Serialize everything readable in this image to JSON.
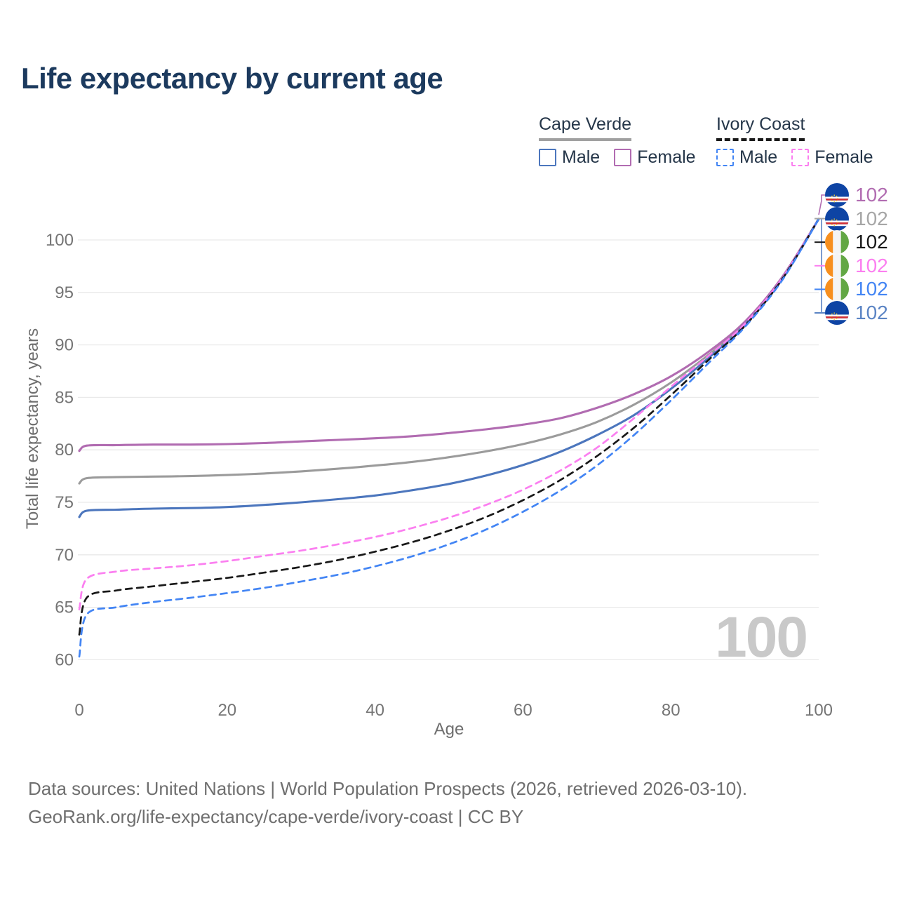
{
  "title": "Life expectancy by current age",
  "legend": {
    "groups": [
      {
        "label": "Cape Verde",
        "line_style": "solid",
        "swatch_color": "#a0a0a0",
        "items": [
          {
            "label": "Male",
            "color": "#4c76bd"
          },
          {
            "label": "Female",
            "color": "#b16cb1"
          }
        ]
      },
      {
        "label": "Ivory Coast",
        "line_style": "dashed",
        "swatch_color": "#1a1a1a",
        "items": [
          {
            "label": "Male",
            "color": "#4385f4"
          },
          {
            "label": "Female",
            "color": "#fb7ff0"
          }
        ]
      }
    ]
  },
  "chart_data": {
    "type": "line",
    "x": [
      0,
      1,
      5,
      10,
      15,
      20,
      25,
      30,
      35,
      40,
      45,
      50,
      55,
      60,
      65,
      70,
      75,
      80,
      85,
      90,
      95,
      100
    ],
    "series": [
      {
        "name": "Cape Verde Female",
        "country": "Cape Verde",
        "sex": "Female",
        "color": "#b16cb1",
        "dashed": false,
        "values": [
          79.9,
          80.4,
          80.45,
          80.5,
          80.5,
          80.55,
          80.65,
          80.8,
          80.95,
          81.1,
          81.3,
          81.6,
          81.95,
          82.4,
          83.0,
          84.0,
          85.3,
          87.0,
          89.3,
          92.2,
          96.4,
          102
        ]
      },
      {
        "name": "Cape Verde Both sexes",
        "country": "Cape Verde",
        "sex": "Both",
        "color": "#9b9b9b",
        "dashed": false,
        "values": [
          76.8,
          77.3,
          77.4,
          77.45,
          77.5,
          77.6,
          77.75,
          77.95,
          78.2,
          78.5,
          78.85,
          79.3,
          79.85,
          80.55,
          81.45,
          82.65,
          84.3,
          86.4,
          89.0,
          92.0,
          96.3,
          102
        ]
      },
      {
        "name": "Cape Verde Male",
        "country": "Cape Verde",
        "sex": "Male",
        "color": "#4c76bd",
        "dashed": false,
        "values": [
          73.6,
          74.2,
          74.3,
          74.4,
          74.45,
          74.55,
          74.75,
          75.0,
          75.3,
          75.65,
          76.15,
          76.75,
          77.55,
          78.55,
          79.8,
          81.4,
          83.3,
          85.8,
          88.7,
          91.9,
          96.2,
          102
        ]
      },
      {
        "name": "Ivory Coast Female",
        "country": "Ivory Coast",
        "sex": "Female",
        "color": "#fb7ff0",
        "dashed": true,
        "values": [
          64.8,
          67.7,
          68.4,
          68.7,
          69.0,
          69.4,
          69.9,
          70.4,
          71.0,
          71.7,
          72.55,
          73.55,
          74.75,
          76.2,
          78.0,
          80.2,
          83.0,
          86.0,
          88.9,
          92.0,
          96.3,
          102
        ]
      },
      {
        "name": "Ivory Coast Both sexes",
        "country": "Ivory Coast",
        "sex": "Both",
        "color": "#181818",
        "dashed": true,
        "values": [
          62.4,
          65.9,
          66.6,
          67.0,
          67.4,
          67.8,
          68.3,
          68.85,
          69.5,
          70.3,
          71.2,
          72.3,
          73.6,
          75.2,
          77.1,
          79.4,
          82.1,
          85.2,
          88.5,
          91.8,
          96.2,
          102
        ]
      },
      {
        "name": "Ivory Coast Male",
        "country": "Ivory Coast",
        "sex": "Male",
        "color": "#4385f4",
        "dashed": true,
        "values": [
          60.3,
          64.3,
          65.0,
          65.5,
          65.9,
          66.35,
          66.85,
          67.45,
          68.1,
          68.9,
          69.85,
          71.0,
          72.4,
          74.1,
          76.1,
          78.5,
          81.4,
          84.7,
          88.2,
          91.7,
          96.1,
          102
        ]
      }
    ],
    "xlabel": "Age",
    "ylabel": "Total life expectancy, years",
    "xticks": [
      0,
      20,
      40,
      60,
      80,
      100
    ],
    "yticks": [
      60,
      65,
      70,
      75,
      80,
      85,
      90,
      95,
      100
    ],
    "xlim": [
      0,
      100
    ],
    "ylim": [
      60,
      100
    ],
    "grid": "horizontal",
    "legend_position": "top-right",
    "end_value_at_age_100": 102
  },
  "end_labels": [
    {
      "text": "102",
      "flag": "cape-verde",
      "series": "Cape Verde Female",
      "color": "#b16cb1"
    },
    {
      "text": "102",
      "flag": "cape-verde",
      "series": "Cape Verde Both sexes",
      "color": "#a6a6a6"
    },
    {
      "text": "102",
      "flag": "ivory-coast",
      "series": "Ivory Coast Both sexes",
      "color": "#181818"
    },
    {
      "text": "102",
      "flag": "ivory-coast",
      "series": "Ivory Coast Female",
      "color": "#fb7ff0"
    },
    {
      "text": "102",
      "flag": "ivory-coast",
      "series": "Ivory Coast Male",
      "color": "#4385f4"
    },
    {
      "text": "102",
      "flag": "cape-verde",
      "series": "Cape Verde Male",
      "color": "#5b84c4"
    }
  ],
  "watermark_age": "100",
  "footer": {
    "line1": "Data sources: United Nations | World Population Prospects (2026, retrieved 2026-03-10).",
    "line2": "GeoRank.org/life-expectancy/cape-verde/ivory-coast | CC BY"
  },
  "colors": {
    "title": "#1c3a5e",
    "axis_text": "#757575",
    "gridline": "#e9e9e9",
    "watermark": "#c9c9c9",
    "footer_text": "#6f6f6f",
    "legend_text": "#253649"
  }
}
